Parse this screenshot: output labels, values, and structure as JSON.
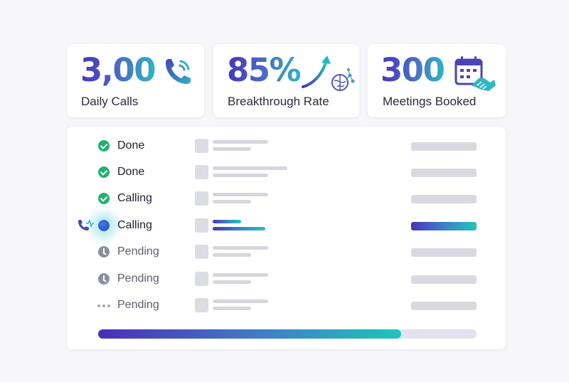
{
  "stats": [
    {
      "value": "3,00",
      "label": "Daily Calls",
      "icon": "phone-icon"
    },
    {
      "value": "85%",
      "label": "Breakthrough Rate",
      "icon": "brain-growth-icon"
    },
    {
      "value": "300",
      "label": "Meetings Booked",
      "icon": "calendar-handshake-icon"
    }
  ],
  "tasks": [
    {
      "status": "done",
      "label": "Done"
    },
    {
      "status": "done",
      "label": "Done"
    },
    {
      "status": "done",
      "label": "Calling"
    },
    {
      "status": "active",
      "label": "Calling"
    },
    {
      "status": "pending",
      "label": "Pending"
    },
    {
      "status": "pending",
      "label": "Pending"
    },
    {
      "status": "queued",
      "label": "Pending"
    }
  ],
  "overall_progress": 0.8,
  "colors": {
    "accent_start": "#4636b8",
    "accent_end": "#1ec6bb",
    "done_green": "#20b26b",
    "pending_gray": "#8e8f9e"
  }
}
